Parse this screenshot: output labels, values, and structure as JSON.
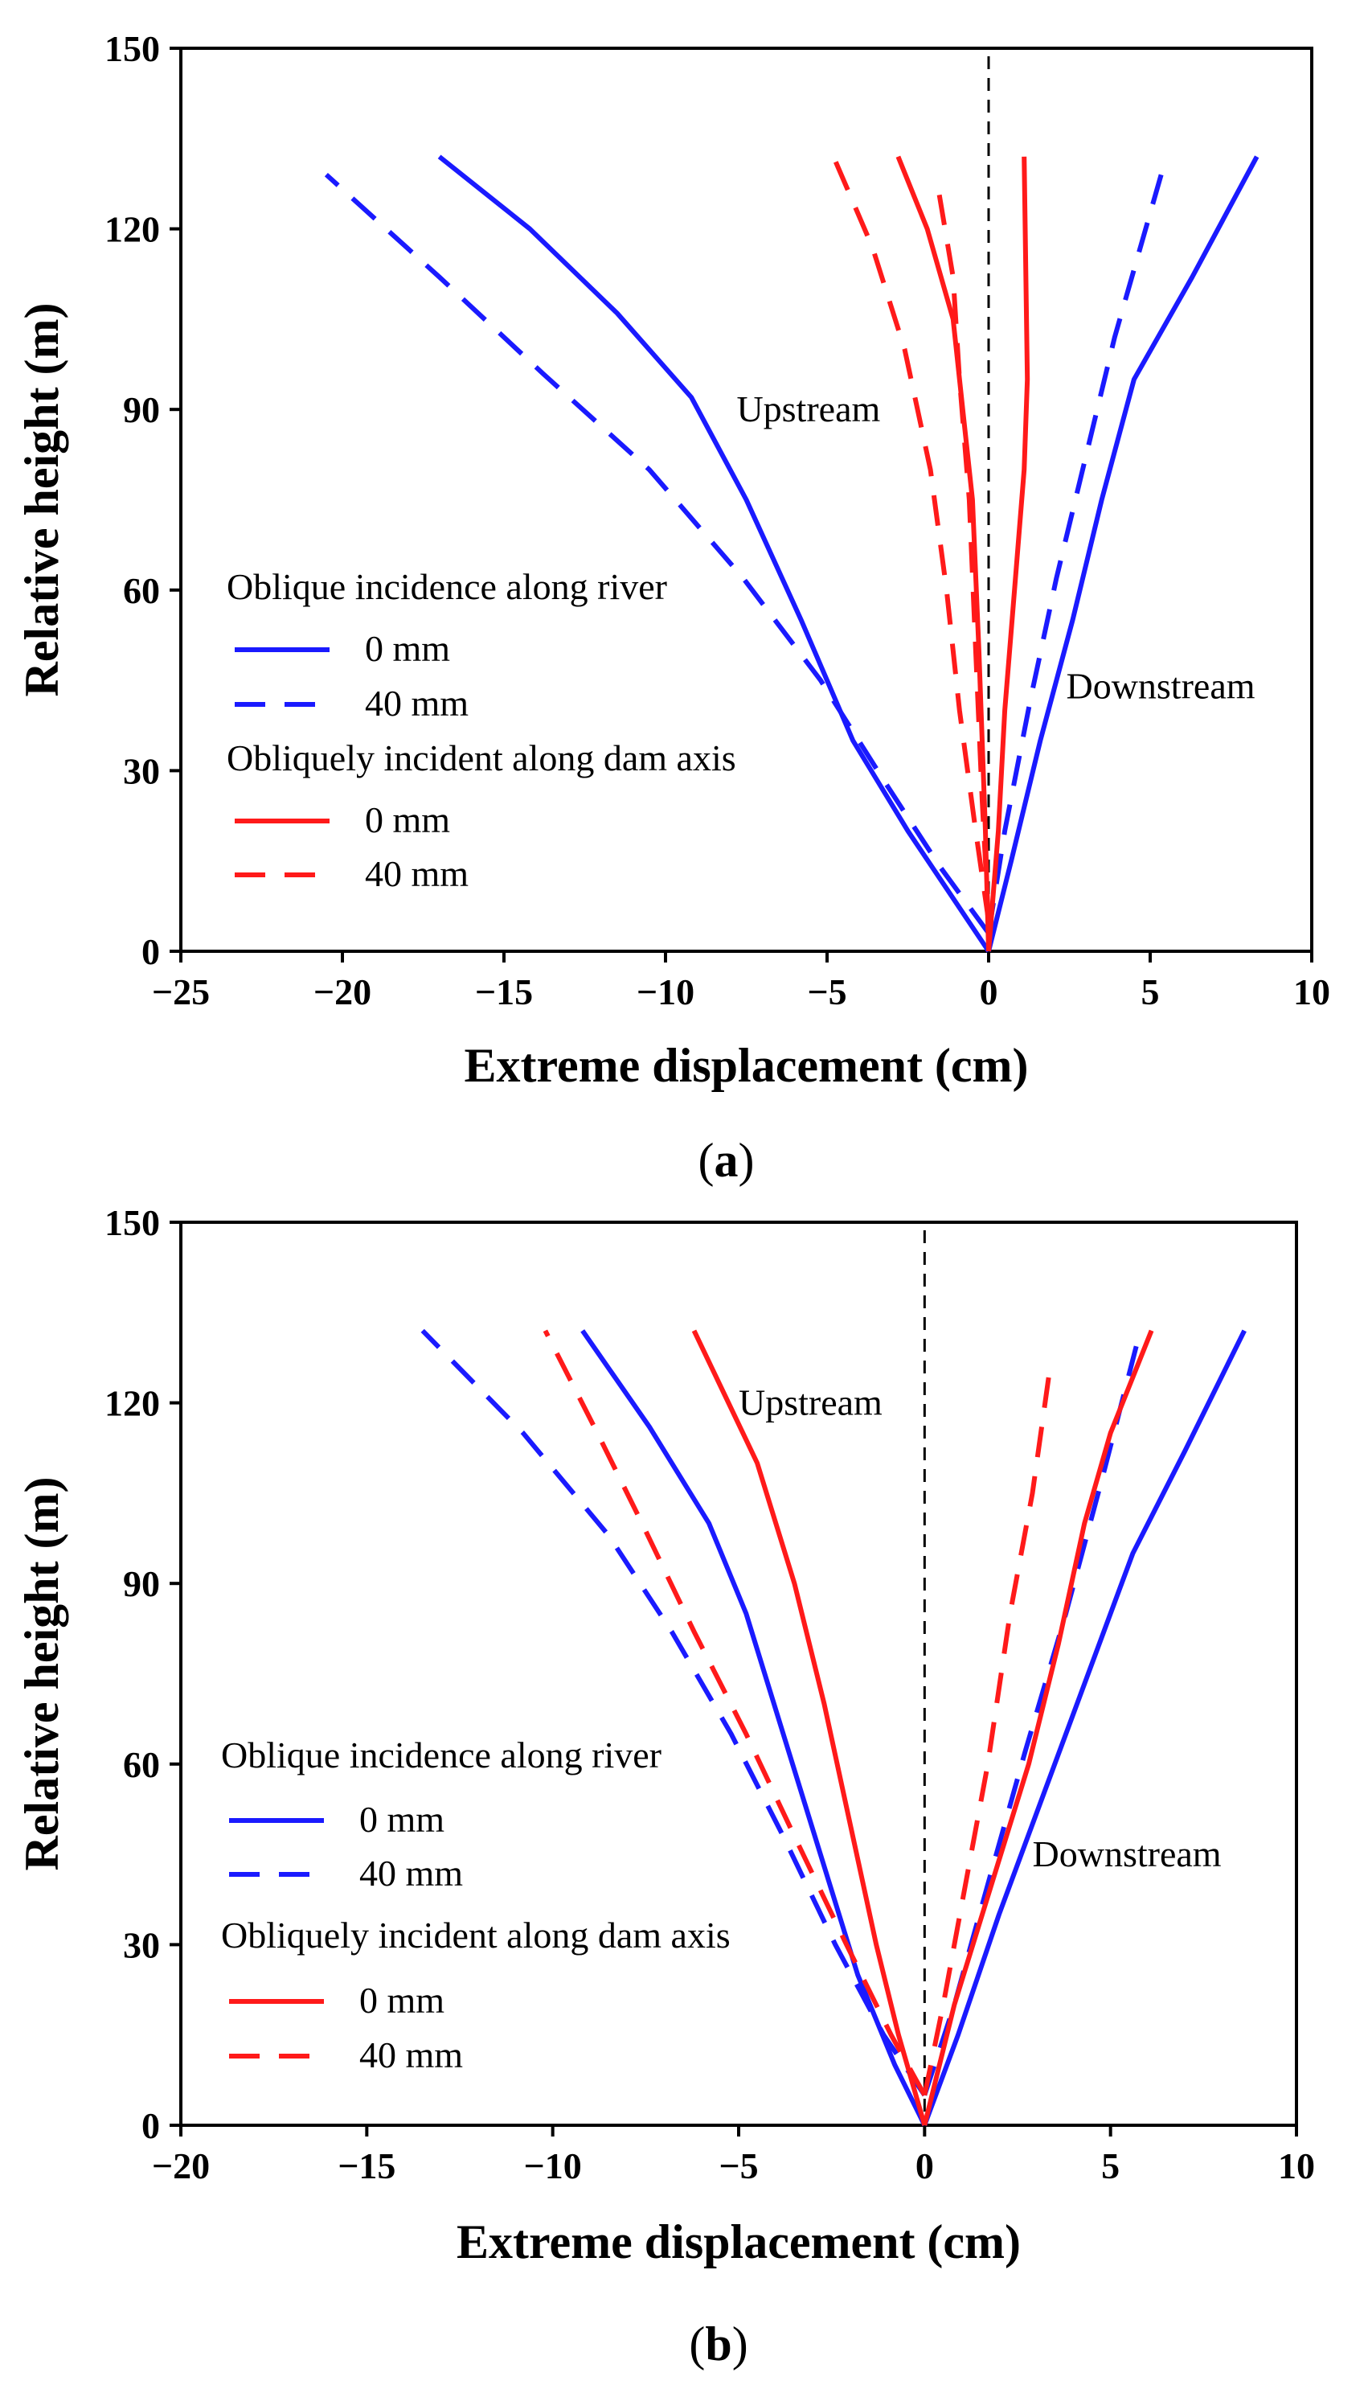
{
  "colors": {
    "blue": "#1a1aff",
    "red": "#ff1a1a",
    "axis": "#000000",
    "zero_line": "#000000"
  },
  "chart_data": [
    {
      "type": "line",
      "caption": "(a)",
      "caption_letter": "a",
      "xlabel": "Extreme displacement (cm)",
      "ylabel": "Relative height (m)",
      "xlim": [
        -25,
        10
      ],
      "ylim": [
        0,
        150
      ],
      "xticks": [
        -25,
        -20,
        -15,
        -10,
        -5,
        0,
        5,
        10
      ],
      "xtick_labels": [
        "−25",
        "−20",
        "−15",
        "−10",
        "−5",
        "0",
        "5",
        "10"
      ],
      "yticks": [
        0,
        30,
        60,
        90,
        120,
        150
      ],
      "ytick_labels": [
        "0",
        "30",
        "60",
        "90",
        "120",
        "150"
      ],
      "zero_line": true,
      "annotations": [
        {
          "text": "Upstream",
          "x": -7.8,
          "y": 88
        },
        {
          "text": "Downstream",
          "x": 2.4,
          "y": 42
        }
      ],
      "legend": {
        "groups": [
          {
            "title": "Oblique incidence along river",
            "items": [
              {
                "label": "0 mm",
                "series": "river_0mm"
              },
              {
                "label": "40 mm",
                "series": "river_40mm"
              }
            ]
          },
          {
            "title": "Obliquely incident along dam axis",
            "items": [
              {
                "label": "0 mm",
                "series": "axis_0mm"
              },
              {
                "label": "40 mm",
                "series": "axis_40mm"
              }
            ]
          }
        ]
      },
      "series": [
        {
          "id": "river_0mm",
          "name": "0 mm",
          "color": "blue",
          "dash": false,
          "branches": [
            [
              [
                0,
                0
              ],
              [
                -1,
                8
              ],
              [
                -2.5,
                20
              ],
              [
                -4.2,
                35
              ],
              [
                -5.8,
                55
              ],
              [
                -7.5,
                75
              ],
              [
                -9.2,
                92
              ],
              [
                -11.5,
                106
              ],
              [
                -14.2,
                120
              ],
              [
                -17,
                132
              ]
            ],
            [
              [
                0,
                0
              ],
              [
                0.7,
                15
              ],
              [
                1.6,
                35
              ],
              [
                2.6,
                55
              ],
              [
                3.5,
                75
              ],
              [
                4.5,
                95
              ],
              [
                6.3,
                112
              ],
              [
                8.3,
                132
              ]
            ]
          ]
        },
        {
          "id": "river_40mm",
          "name": "40 mm",
          "color": "blue",
          "dash": true,
          "branches": [
            [
              [
                0,
                3
              ],
              [
                -1.5,
                14
              ],
              [
                -3.2,
                28
              ],
              [
                -5.2,
                45
              ],
              [
                -7.6,
                62
              ],
              [
                -10.5,
                80
              ],
              [
                -13.8,
                96
              ],
              [
                -17,
                112
              ],
              [
                -20.5,
                129
              ]
            ],
            [
              [
                0,
                3
              ],
              [
                0.5,
                20
              ],
              [
                1.3,
                42
              ],
              [
                2.1,
                62
              ],
              [
                3,
                82
              ],
              [
                3.9,
                102
              ],
              [
                5.5,
                132
              ]
            ]
          ]
        },
        {
          "id": "axis_0mm",
          "name": "0 mm",
          "color": "red",
          "dash": false,
          "branches": [
            [
              [
                0,
                0
              ],
              [
                -0.1,
                20
              ],
              [
                -0.3,
                50
              ],
              [
                -0.5,
                75
              ],
              [
                -0.8,
                90
              ],
              [
                -1.1,
                105
              ],
              [
                -1.9,
                120
              ],
              [
                -2.8,
                132
              ]
            ],
            [
              [
                0,
                0
              ],
              [
                0.3,
                20
              ],
              [
                0.5,
                40
              ],
              [
                0.8,
                60
              ],
              [
                1.1,
                80
              ],
              [
                1.2,
                95
              ],
              [
                1.1,
                132
              ]
            ]
          ]
        },
        {
          "id": "axis_40mm",
          "name": "40 mm",
          "color": "red",
          "dash": true,
          "branches": [
            [
              [
                0,
                5
              ],
              [
                -0.4,
                20
              ],
              [
                -0.9,
                40
              ],
              [
                -1.3,
                60
              ],
              [
                -1.8,
                80
              ],
              [
                -2.6,
                100
              ],
              [
                -3.6,
                117
              ],
              [
                -4.8,
                132
              ]
            ],
            [
              [
                0,
                5
              ],
              [
                -0.2,
                25
              ],
              [
                -0.4,
                50
              ],
              [
                -0.6,
                75
              ],
              [
                -0.9,
                95
              ],
              [
                -1.1,
                112
              ],
              [
                -1.6,
                128
              ]
            ]
          ]
        }
      ]
    },
    {
      "type": "line",
      "caption": "(b)",
      "caption_letter": "b",
      "xlabel": "Extreme displacement (cm)",
      "ylabel": "Relative height (m)",
      "xlim": [
        -20,
        10
      ],
      "ylim": [
        0,
        150
      ],
      "xticks": [
        -20,
        -15,
        -10,
        -5,
        0,
        5,
        10
      ],
      "xtick_labels": [
        "−20",
        "−15",
        "−10",
        "−5",
        "0",
        "5",
        "10"
      ],
      "yticks": [
        0,
        30,
        60,
        90,
        120,
        150
      ],
      "ytick_labels": [
        "0",
        "30",
        "60",
        "90",
        "120",
        "150"
      ],
      "zero_line": true,
      "annotations": [
        {
          "text": "Upstream",
          "x": -5,
          "y": 118
        },
        {
          "text": "Downstream",
          "x": 2.9,
          "y": 43
        }
      ],
      "legend": {
        "groups": [
          {
            "title": "Oblique incidence along river",
            "items": [
              {
                "label": "0 mm",
                "series": "river_0mm"
              },
              {
                "label": "40 mm",
                "series": "river_40mm"
              }
            ]
          },
          {
            "title": "Obliquely incident along dam axis",
            "items": [
              {
                "label": "0 mm",
                "series": "axis_0mm"
              },
              {
                "label": "40 mm",
                "series": "axis_40mm"
              }
            ]
          }
        ]
      },
      "series": [
        {
          "id": "river_0mm",
          "name": "0 mm",
          "color": "blue",
          "dash": false,
          "branches": [
            [
              [
                0,
                0
              ],
              [
                -0.8,
                10
              ],
              [
                -1.8,
                25
              ],
              [
                -2.8,
                45
              ],
              [
                -3.8,
                65
              ],
              [
                -4.8,
                85
              ],
              [
                -5.8,
                100
              ],
              [
                -7.4,
                116
              ],
              [
                -9.2,
                132
              ]
            ],
            [
              [
                0,
                0
              ],
              [
                0.9,
                15
              ],
              [
                2,
                35
              ],
              [
                3.2,
                55
              ],
              [
                4.4,
                75
              ],
              [
                5.6,
                95
              ],
              [
                7,
                112
              ],
              [
                8.6,
                132
              ]
            ]
          ]
        },
        {
          "id": "river_40mm",
          "name": "40 mm",
          "color": "blue",
          "dash": true,
          "branches": [
            [
              [
                0,
                5
              ],
              [
                -1.1,
                15
              ],
              [
                -2.4,
                30
              ],
              [
                -3.8,
                48
              ],
              [
                -5.2,
                65
              ],
              [
                -6.8,
                82
              ],
              [
                -8.5,
                98
              ],
              [
                -10.8,
                115
              ],
              [
                -13.5,
                132
              ]
            ],
            [
              [
                0,
                5
              ],
              [
                0.8,
                20
              ],
              [
                1.7,
                40
              ],
              [
                2.7,
                62
              ],
              [
                3.8,
                85
              ],
              [
                4.8,
                108
              ],
              [
                5.8,
                132
              ]
            ]
          ]
        },
        {
          "id": "axis_0mm",
          "name": "0 mm",
          "color": "red",
          "dash": false,
          "branches": [
            [
              [
                0,
                0
              ],
              [
                -0.7,
                15
              ],
              [
                -1.3,
                30
              ],
              [
                -2,
                50
              ],
              [
                -2.7,
                70
              ],
              [
                -3.5,
                90
              ],
              [
                -4.5,
                110
              ],
              [
                -6.2,
                132
              ]
            ],
            [
              [
                0,
                0
              ],
              [
                0.8,
                20
              ],
              [
                1.8,
                40
              ],
              [
                2.8,
                60
              ],
              [
                3.6,
                80
              ],
              [
                4.3,
                100
              ],
              [
                5,
                115
              ],
              [
                6.1,
                132
              ]
            ]
          ]
        },
        {
          "id": "axis_40mm",
          "name": "40 mm",
          "color": "red",
          "dash": true,
          "branches": [
            [
              [
                0,
                5
              ],
              [
                -0.9,
                15
              ],
              [
                -2.1,
                30
              ],
              [
                -3.5,
                48
              ],
              [
                -4.8,
                65
              ],
              [
                -6.2,
                82
              ],
              [
                -7.6,
                100
              ],
              [
                -8.8,
                115
              ],
              [
                -10.2,
                132
              ]
            ],
            [
              [
                0,
                5
              ],
              [
                0.5,
                20
              ],
              [
                1.1,
                40
              ],
              [
                1.7,
                60
              ],
              [
                2.3,
                85
              ],
              [
                2.9,
                105
              ],
              [
                3.4,
                127
              ]
            ]
          ]
        }
      ]
    }
  ]
}
